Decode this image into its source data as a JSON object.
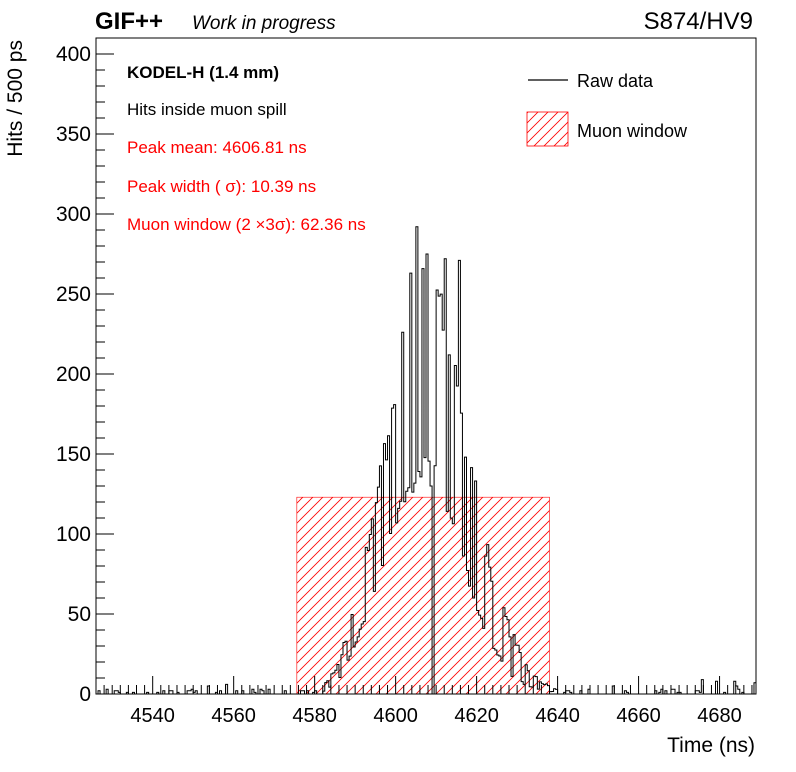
{
  "header": {
    "experiment": "GIF++",
    "status": "Work in progress",
    "run_label": "S874/HV9"
  },
  "chart_data": {
    "type": "histogram",
    "xlabel": "Time (ns)",
    "ylabel": "Hits / 500 ps",
    "xlim": [
      4526,
      4689
    ],
    "ylim": [
      0,
      410
    ],
    "xticks": [
      4540,
      4560,
      4580,
      4600,
      4620,
      4640,
      4660,
      4680
    ],
    "yticks": [
      0,
      50,
      100,
      150,
      200,
      250,
      300,
      350,
      400
    ],
    "grid": false,
    "bin_width_ns": 0.5,
    "annotations": {
      "detector": "KODEL-H (1.4 mm)",
      "selection": "Hits inside muon spill",
      "peak_mean": "Peak mean: 4606.81 ns",
      "peak_width": "Peak width ( σ): 10.39 ns",
      "muon_window": "Muon window (2 ×3σ): 62.36 ns"
    },
    "legend": {
      "placement": "top-right",
      "entries": [
        "Raw data",
        "Muon window"
      ]
    },
    "muon_window": {
      "x_start": 4575.6,
      "x_end": 4638.0,
      "height": 123
    },
    "envelope": {
      "x": [
        4582,
        4586,
        4590,
        4594,
        4598,
        4601,
        4604,
        4607,
        4610,
        4613,
        4616,
        4620,
        4624,
        4628,
        4632,
        4636,
        4640
      ],
      "upper": [
        5,
        20,
        60,
        110,
        170,
        225,
        270,
        300,
        290,
        240,
        190,
        130,
        80,
        45,
        20,
        8,
        3
      ],
      "lower": [
        1,
        8,
        30,
        55,
        85,
        110,
        125,
        135,
        130,
        110,
        85,
        50,
        25,
        12,
        5,
        2,
        1
      ]
    },
    "spikes": [
      {
        "x": 4605.4,
        "y": 292
      },
      {
        "x": 4607.6,
        "y": 275
      },
      {
        "x": 4609.1,
        "y": 315
      },
      {
        "x": 4612.3,
        "y": 272
      },
      {
        "x": 4615.8,
        "y": 271
      },
      {
        "x": 4608.9,
        "y": 130
      },
      {
        "x": 4609.2,
        "y": 0
      }
    ],
    "colors": {
      "axis": "#000000",
      "data": "#000000",
      "window": "#ff0000",
      "annotation_red": "#ff0000"
    }
  }
}
